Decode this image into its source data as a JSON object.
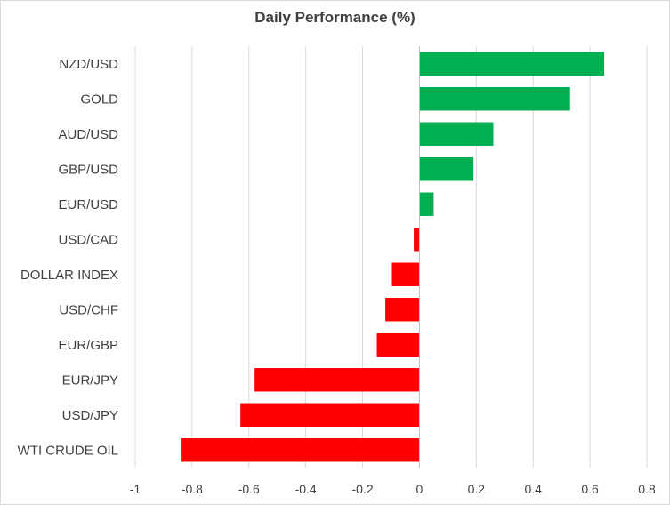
{
  "chart_data": {
    "type": "bar",
    "orientation": "horizontal",
    "title": "Daily Performance (%)",
    "categories": [
      "NZD/USD",
      "GOLD",
      "AUD/USD",
      "GBP/USD",
      "EUR/USD",
      "USD/CAD",
      "DOLLAR INDEX",
      "USD/CHF",
      "EUR/GBP",
      "EUR/JPY",
      "USD/JPY",
      "WTI CRUDE OIL"
    ],
    "values": [
      0.65,
      0.53,
      0.26,
      0.19,
      0.05,
      -0.02,
      -0.1,
      -0.12,
      -0.15,
      -0.58,
      -0.63,
      -0.84
    ],
    "xlim": [
      -1,
      0.8
    ],
    "xticks": [
      -1,
      -0.8,
      -0.6,
      -0.4,
      -0.2,
      0,
      0.2,
      0.4,
      0.6,
      0.8
    ],
    "xtick_labels": [
      "-1",
      "-0.8",
      "-0.6",
      "-0.4",
      "-0.2",
      "0",
      "0.2",
      "0.4",
      "0.6",
      "0.8"
    ],
    "grid": "vertical",
    "colors": {
      "positive": "#00b050",
      "negative": "#ff0000",
      "grid": "#d9d9d9",
      "axis": "#bfbfbf",
      "text": "#404040"
    }
  }
}
